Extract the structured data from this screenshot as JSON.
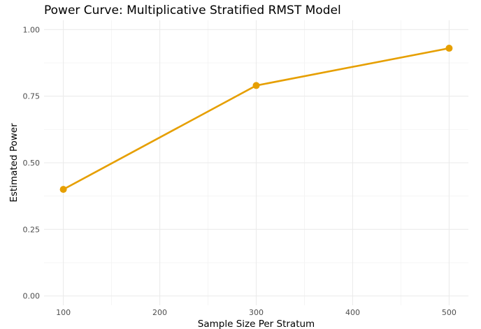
{
  "chart_data": {
    "type": "line",
    "title": "Power Curve: Multiplicative Stratified RMST Model",
    "xlabel": "Sample Size Per Stratum",
    "ylabel": "Estimated Power",
    "x": [
      100,
      300,
      500
    ],
    "series": [
      {
        "values": [
          0.4,
          0.79,
          0.93
        ],
        "color": "#E69F00"
      }
    ],
    "xlim": [
      80,
      520
    ],
    "ylim": [
      -0.035,
      1.035
    ],
    "x_ticks": [
      100,
      200,
      300,
      400,
      500
    ],
    "x_tick_labels": [
      "100",
      "200",
      "300",
      "400",
      "500"
    ],
    "y_ticks": [
      0.0,
      0.25,
      0.5,
      0.75,
      1.0
    ],
    "y_tick_labels": [
      "0.00",
      "0.25",
      "0.50",
      "0.75",
      "1.00"
    ],
    "grid": true,
    "legend": "none"
  }
}
